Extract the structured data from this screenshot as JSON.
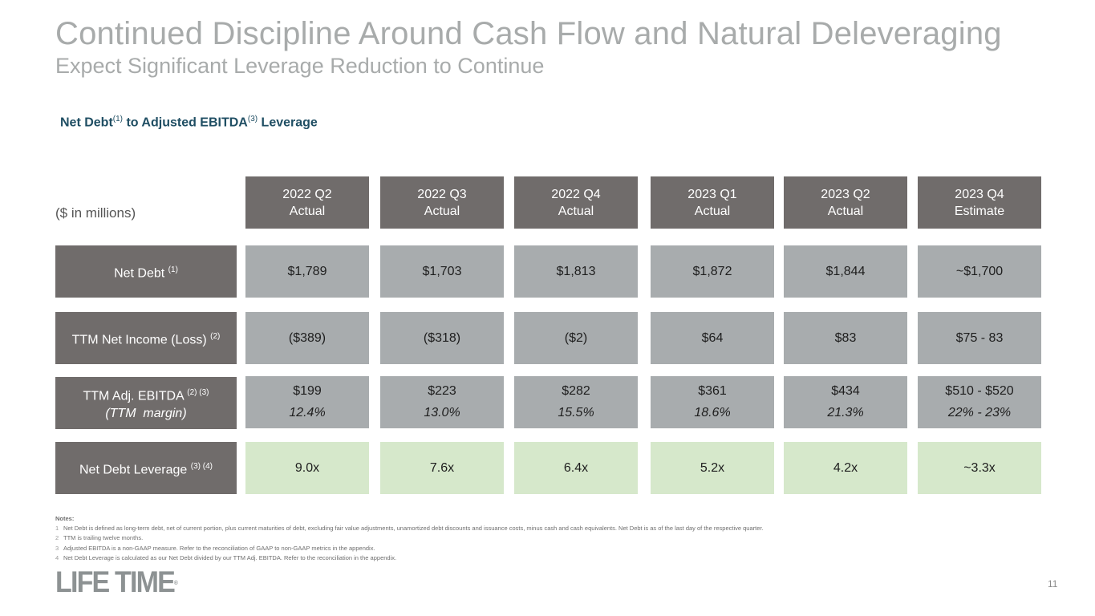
{
  "title": "Continued Discipline Around Cash Flow and Natural Deleveraging",
  "subtitle": "Expect Significant Leverage Reduction to Continue",
  "section": {
    "label_a": "Net Debt",
    "sup_a": "(1)",
    "label_b": " to Adjusted EBITDA",
    "sup_b": "(3)",
    "label_c": " Leverage"
  },
  "units": "($ in millions)",
  "columns": [
    {
      "period": "2022 Q2",
      "type": "Actual",
      "net_debt": "$1,789",
      "net_income": "($389)",
      "ebitda": "$199",
      "margin": "12.4%",
      "leverage": "9.0x"
    },
    {
      "period": "2022 Q3",
      "type": "Actual",
      "net_debt": "$1,703",
      "net_income": "($318)",
      "ebitda": "$223",
      "margin": "13.0%",
      "leverage": "7.6x"
    },
    {
      "period": "2022 Q4",
      "type": "Actual",
      "net_debt": "$1,813",
      "net_income": "($2)",
      "ebitda": "$282",
      "margin": "15.5%",
      "leverage": "6.4x"
    },
    {
      "period": "2023 Q1",
      "type": "Actual",
      "net_debt": "$1,872",
      "net_income": "$64",
      "ebitda": "$361",
      "margin": "18.6%",
      "leverage": "5.2x"
    },
    {
      "period": "2023 Q2",
      "type": "Actual",
      "net_debt": "$1,844",
      "net_income": "$83",
      "ebitda": "$434",
      "margin": "21.3%",
      "leverage": "4.2x"
    },
    {
      "period": "2023 Q4",
      "type": "Estimate",
      "net_debt": "~$1,700",
      "net_income": "$75 - 83",
      "ebitda": "$510 - $520",
      "margin": "22% - 23%",
      "leverage": "~3.3x"
    }
  ],
  "rows": {
    "net_debt": {
      "label": "Net Debt",
      "sup": "(1)"
    },
    "net_income": {
      "label": "TTM Net Income (Loss)",
      "sup": "(2)"
    },
    "ebitda": {
      "label": "TTM Adj. EBITDA",
      "sup": "(2) (3)",
      "sublabel": "(TTM  margin)"
    },
    "leverage": {
      "label": "Net Debt Leverage",
      "sup": "(3) (4)"
    }
  },
  "notes": {
    "heading": "Notes:",
    "items": [
      {
        "num": "1",
        "text": "Net Debt is defined as long-term debt, net of current portion, plus current maturities of debt, excluding fair value adjustments, unamortized debt discounts and issuance costs, minus cash and cash equivalents. Net Debt is as of the last day of the respective quarter."
      },
      {
        "num": "2",
        "text": "TTM is trailing twelve months."
      },
      {
        "num": "3",
        "text": "Adjusted EBITDA is a non-GAAP measure.  Refer to the reconciliation of GAAP to non-GAAP metrics in the appendix."
      },
      {
        "num": "4",
        "text": "Net Debt Leverage is calculated as our Net Debt divided by our TTM Adj. EBITDA.  Refer to the reconciliation in the appendix."
      }
    ]
  },
  "logo": {
    "text": "LIFE TIME",
    "mark": "®"
  },
  "page_number": "11",
  "colors": {
    "header_bg": "#706c6b",
    "value_bg": "#a8acae",
    "leverage_bg": "#d6e8cb",
    "section_text": "#1f4e63",
    "title_text": "#a8abab"
  }
}
